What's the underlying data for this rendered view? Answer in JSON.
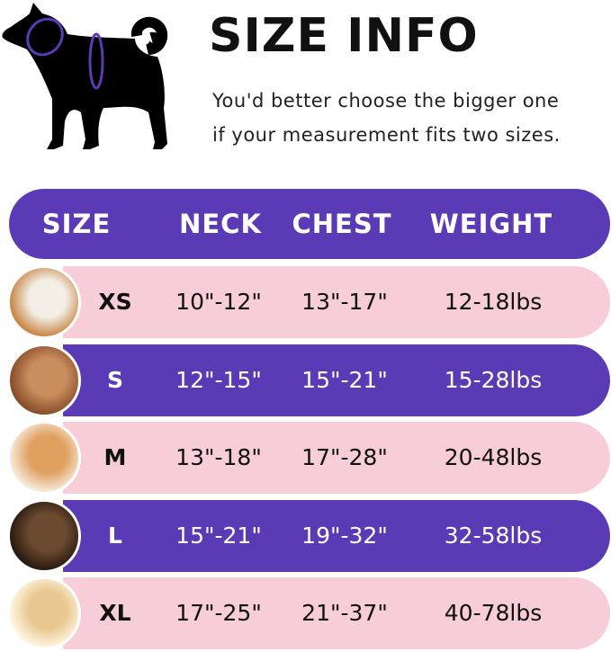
{
  "title": "SIZE INFO",
  "subtitle_lines": [
    "You'd better choose the bigger one",
    "if your measurement fits two sizes."
  ],
  "colors": {
    "purple": "#5a3bb5",
    "pink": "#f7cdd8"
  },
  "table": {
    "headers": [
      "SIZE",
      "NECK",
      "CHEST",
      "WEIGHT"
    ],
    "rows": [
      {
        "size": "XS",
        "neck": "10\"-12\"",
        "chest": "13\"-17\"",
        "weight": "12-18lbs",
        "style": "pink",
        "photo": "pomeranian-photo"
      },
      {
        "size": "S",
        "neck": "12\"-15\"",
        "chest": "15\"-21\"",
        "weight": "15-28lbs",
        "style": "purple",
        "photo": "poodle-photo"
      },
      {
        "size": "M",
        "neck": "13\"-18\"",
        "chest": "17\"-28\"",
        "weight": "20-48lbs",
        "style": "pink",
        "photo": "shiba-photo"
      },
      {
        "size": "L",
        "neck": "15\"-21\"",
        "chest": "19\"-32\"",
        "weight": "32-58lbs",
        "style": "purple",
        "photo": "french-bulldog-photo"
      },
      {
        "size": "XL",
        "neck": "17\"-25\"",
        "chest": "21\"-37\"",
        "weight": "40-78lbs",
        "style": "pink",
        "photo": "labrador-photo"
      }
    ]
  }
}
